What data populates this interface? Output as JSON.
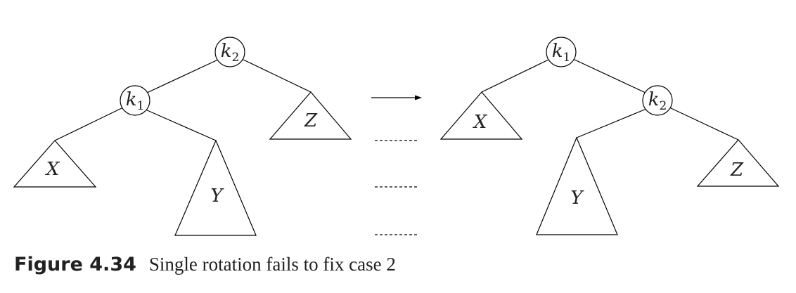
{
  "left_tree": {
    "root": {
      "letter": "k",
      "sub": "2"
    },
    "child": {
      "letter": "k",
      "sub": "1"
    },
    "subtrees": {
      "x": "X",
      "y": "Y",
      "z": "Z"
    }
  },
  "right_tree": {
    "root": {
      "letter": "k",
      "sub": "1"
    },
    "child": {
      "letter": "k",
      "sub": "2"
    },
    "subtrees": {
      "x": "X",
      "y": "Y",
      "z": "Z"
    }
  },
  "caption": {
    "number": "Figure 4.34",
    "text": "Single rotation fails to fix case 2"
  }
}
